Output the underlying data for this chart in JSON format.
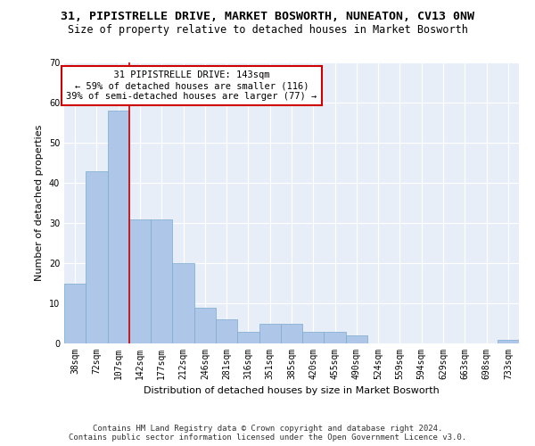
{
  "title": "31, PIPISTRELLE DRIVE, MARKET BOSWORTH, NUNEATON, CV13 0NW",
  "subtitle": "Size of property relative to detached houses in Market Bosworth",
  "xlabel": "Distribution of detached houses by size in Market Bosworth",
  "ylabel": "Number of detached properties",
  "footer_line1": "Contains HM Land Registry data © Crown copyright and database right 2024.",
  "footer_line2": "Contains public sector information licensed under the Open Government Licence v3.0.",
  "annotation_line1": "31 PIPISTRELLE DRIVE: 143sqm",
  "annotation_line2": "← 59% of detached houses are smaller (116)",
  "annotation_line3": "39% of semi-detached houses are larger (77) →",
  "bin_labels": [
    "38sqm",
    "72sqm",
    "107sqm",
    "142sqm",
    "177sqm",
    "212sqm",
    "246sqm",
    "281sqm",
    "316sqm",
    "351sqm",
    "385sqm",
    "420sqm",
    "455sqm",
    "490sqm",
    "524sqm",
    "559sqm",
    "594sqm",
    "629sqm",
    "663sqm",
    "698sqm",
    "733sqm"
  ],
  "bar_values": [
    15,
    43,
    58,
    31,
    31,
    20,
    9,
    6,
    3,
    5,
    5,
    3,
    3,
    2,
    0,
    0,
    0,
    0,
    0,
    0,
    1
  ],
  "bar_color": "#aec6e8",
  "bar_edge_color": "#7aaad0",
  "vline_x_idx": 3,
  "vline_color": "#cc0000",
  "ylim": [
    0,
    70
  ],
  "yticks": [
    0,
    10,
    20,
    30,
    40,
    50,
    60,
    70
  ],
  "annotation_box_color": "#cc0000",
  "bg_color": "#e8eef8",
  "grid_color": "#ffffff",
  "title_fontsize": 9.5,
  "subtitle_fontsize": 8.5,
  "axis_label_fontsize": 8,
  "tick_fontsize": 7,
  "annotation_fontsize": 7.5,
  "footer_fontsize": 6.5
}
